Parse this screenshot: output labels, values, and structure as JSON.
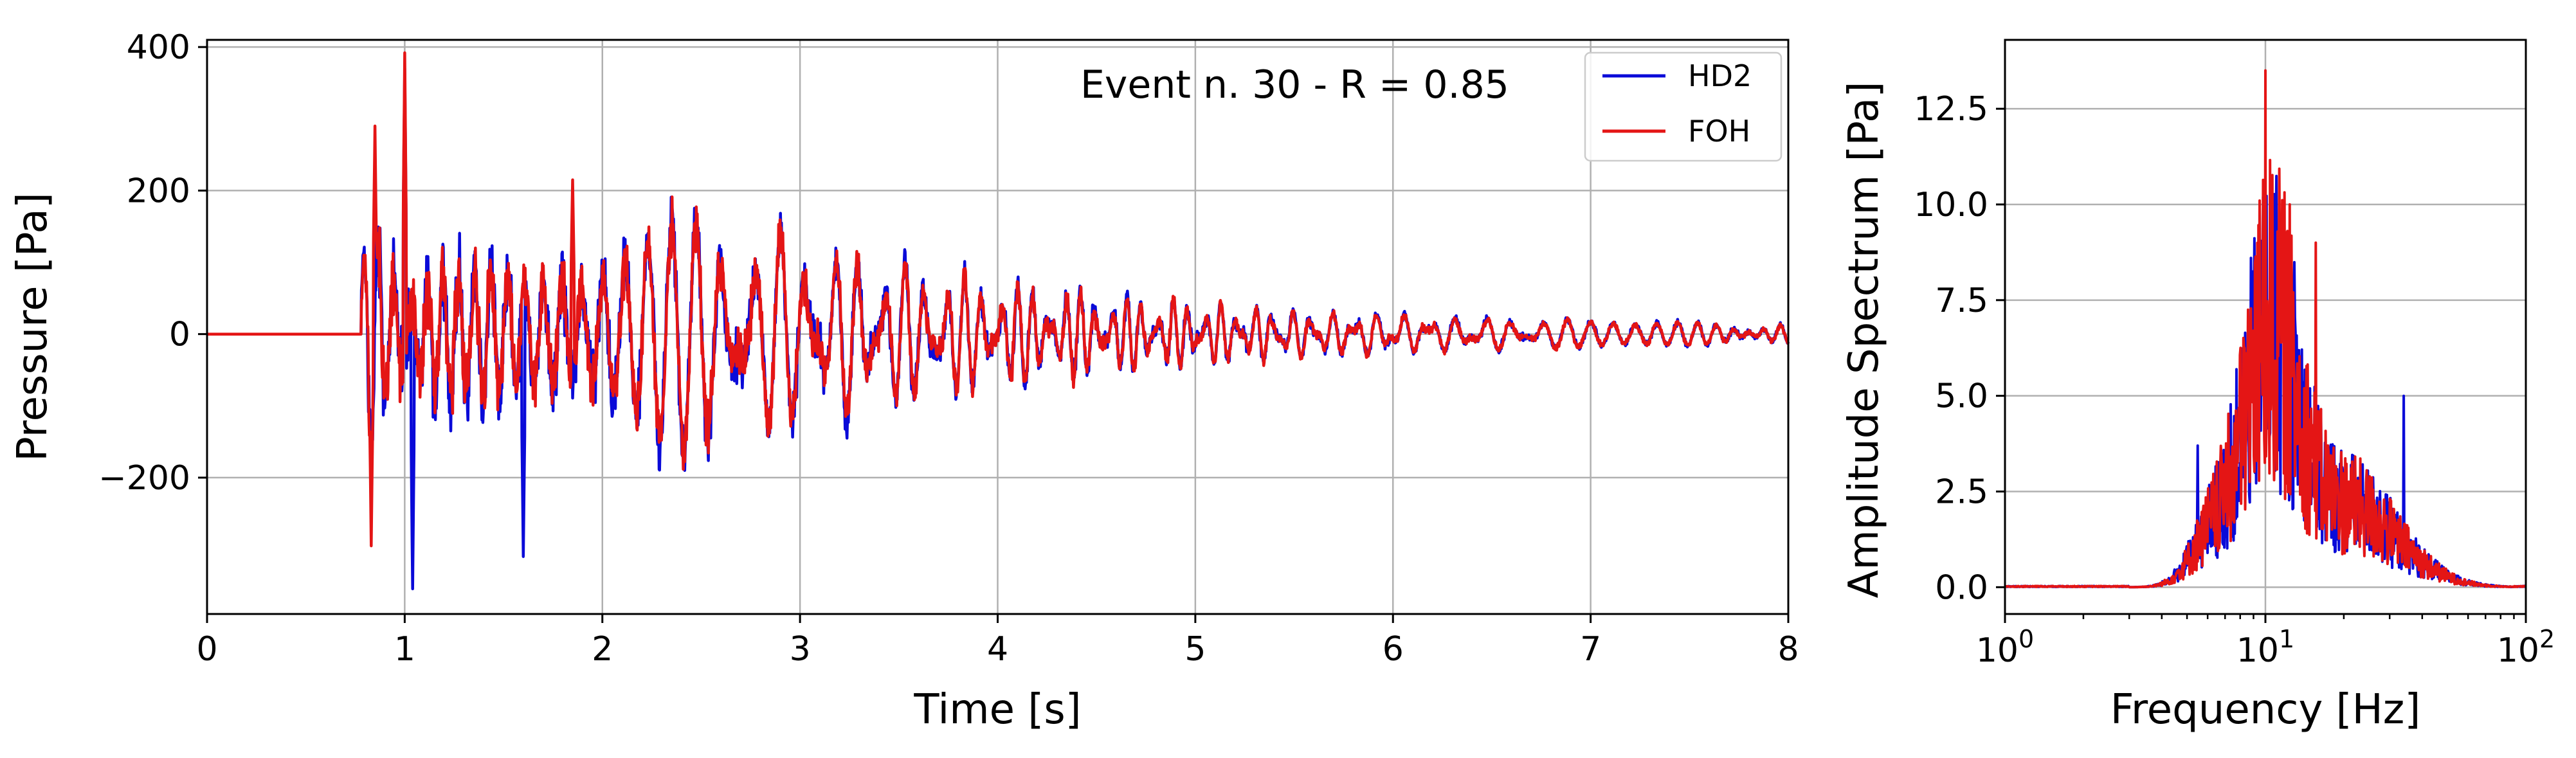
{
  "chart_data": [
    {
      "type": "line",
      "title": "",
      "xlabel": "Time [s]",
      "ylabel": "Pressure [Pa]",
      "xlim": [
        0,
        8
      ],
      "ylim": [
        -390,
        410
      ],
      "x_ticks": [
        0,
        1,
        2,
        3,
        4,
        5,
        6,
        7,
        8
      ],
      "x_tick_labels": [
        "0",
        "1",
        "2",
        "3",
        "4",
        "5",
        "6",
        "7",
        "8"
      ],
      "y_ticks": [
        -200,
        0,
        200,
        400
      ],
      "y_tick_labels": [
        "−200",
        "0",
        "200",
        "400"
      ],
      "grid": true,
      "annotation": "Event n. 30 - R = 0.85",
      "legend": {
        "placement": "top-right",
        "entries": [
          "HD2",
          "FOH"
        ]
      },
      "signal": {
        "onset_time": 0.78,
        "peak_amplitude_hd2": 370,
        "peak_amplitude_foh": 400,
        "min_amplitude_hd2": -355,
        "min_amplitude_foh": -295,
        "notable_times_s": [
          0.8,
          1.0,
          1.6,
          1.85,
          2.4,
          2.65,
          4.1,
          5.1,
          6.0,
          8.0
        ]
      },
      "series": [
        {
          "name": "HD2",
          "color": "#0a0ad8"
        },
        {
          "name": "FOH",
          "color": "#e41515"
        }
      ]
    },
    {
      "type": "line",
      "title": "",
      "xlabel": "Frequency [Hz]",
      "ylabel": "Amplitude Spectrum [Pa]",
      "xscale": "log",
      "xlim": [
        1,
        100
      ],
      "ylim": [
        -0.7,
        14.3
      ],
      "x_ticks": [
        1,
        10,
        100
      ],
      "x_tick_labels": [
        {
          "base": "10",
          "exp": "0"
        },
        {
          "base": "10",
          "exp": "1"
        },
        {
          "base": "10",
          "exp": "2"
        }
      ],
      "y_ticks": [
        0.0,
        2.5,
        5.0,
        7.5,
        10.0,
        12.5
      ],
      "y_tick_labels": [
        "0.0",
        "2.5",
        "5.0",
        "7.5",
        "10.0",
        "12.5"
      ],
      "grid": true,
      "spectrum": {
        "peak_frequency_hz": 10,
        "peak_amplitude_foh": 13.5,
        "peak_amplitude_hd2": 10.2,
        "band_hz": [
          3,
          90
        ]
      },
      "series": [
        {
          "name": "HD2",
          "color": "#0a0ad8"
        },
        {
          "name": "FOH",
          "color": "#e41515"
        }
      ]
    }
  ]
}
